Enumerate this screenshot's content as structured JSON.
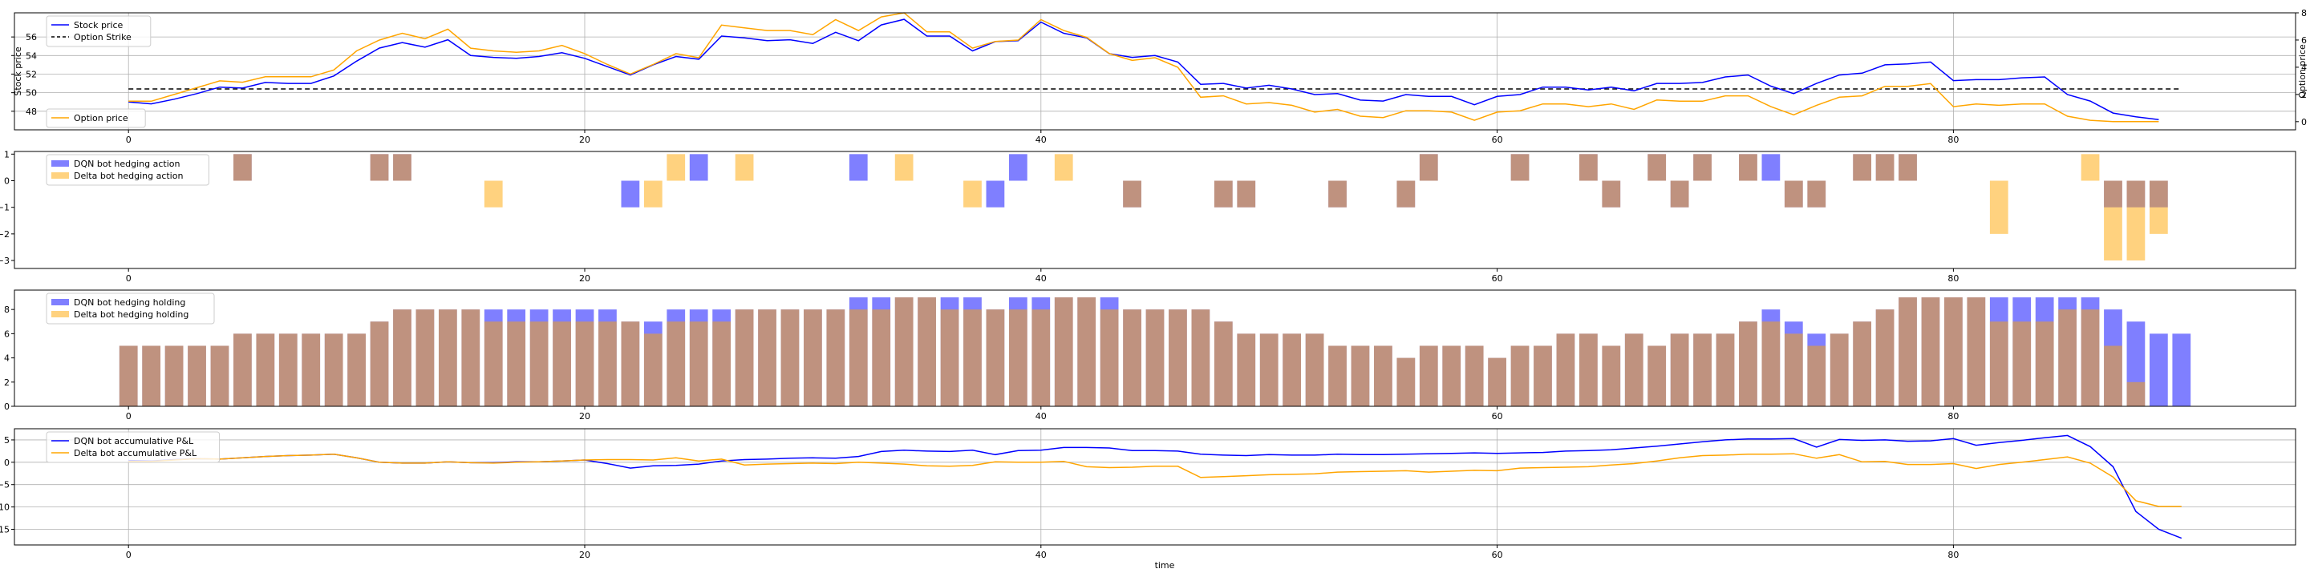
{
  "figure": {
    "xlabel": "time"
  },
  "chart_data": [
    {
      "type": "line",
      "xlim": [
        -5,
        95
      ],
      "ylim": [
        46,
        58.6
      ],
      "y2lim": [
        -0.6,
        8
      ],
      "xticks": [
        0,
        20,
        40,
        60,
        80
      ],
      "yticks": [
        48,
        50,
        52,
        54,
        56
      ],
      "y2ticks": [
        0,
        2,
        4,
        6,
        8
      ],
      "ylabel": "Stock price",
      "y2label": "Option price",
      "grid": true,
      "legend": "top-left",
      "legend2": "bottom-left",
      "strike": 50.4,
      "series": [
        {
          "name": "Stock price",
          "color": "#0000ff",
          "axis": "left",
          "values": [
            49.0,
            48.8,
            49.3,
            49.9,
            50.6,
            50.5,
            51.1,
            51.0,
            51.0,
            51.8,
            53.4,
            54.8,
            55.4,
            54.9,
            55.7,
            54.0,
            53.8,
            53.7,
            53.9,
            54.3,
            53.7,
            52.8,
            51.9,
            53.0,
            53.9,
            53.6,
            56.1,
            55.9,
            55.6,
            55.7,
            55.3,
            56.5,
            55.6,
            57.3,
            57.9,
            56.1,
            56.1,
            54.5,
            55.5,
            55.6,
            57.6,
            56.4,
            55.9,
            54.2,
            53.8,
            54.0,
            53.3,
            50.9,
            51.0,
            50.5,
            50.8,
            50.4,
            49.8,
            49.9,
            49.2,
            49.1,
            49.8,
            49.6,
            49.6,
            48.7,
            49.6,
            49.8,
            50.6,
            50.6,
            50.3,
            50.6,
            50.2,
            51.0,
            51.0,
            51.1,
            51.7,
            51.9,
            50.7,
            49.9,
            51.0,
            51.9,
            52.1,
            53.0,
            53.1,
            53.3,
            51.3,
            51.4,
            51.4,
            51.6,
            51.7,
            49.8,
            49.1,
            47.8,
            47.4,
            47.1
          ]
        },
        {
          "name": "Option price",
          "color": "#ffa500",
          "axis": "right",
          "values": [
            1.5,
            1.5,
            2.0,
            2.5,
            3.0,
            2.9,
            3.3,
            3.3,
            3.3,
            3.8,
            5.2,
            6.0,
            6.5,
            6.1,
            6.8,
            5.4,
            5.2,
            5.1,
            5.2,
            5.6,
            5.0,
            4.2,
            3.5,
            4.2,
            5.0,
            4.7,
            7.1,
            6.9,
            6.7,
            6.7,
            6.4,
            7.5,
            6.7,
            7.7,
            8.0,
            6.6,
            6.6,
            5.4,
            5.9,
            6.0,
            7.5,
            6.7,
            6.2,
            5.0,
            4.5,
            4.7,
            4.0,
            1.8,
            1.9,
            1.3,
            1.4,
            1.2,
            0.7,
            0.9,
            0.4,
            0.3,
            0.8,
            0.8,
            0.7,
            0.1,
            0.7,
            0.8,
            1.3,
            1.3,
            1.1,
            1.3,
            0.9,
            1.6,
            1.5,
            1.5,
            1.9,
            1.9,
            1.1,
            0.5,
            1.2,
            1.8,
            1.9,
            2.6,
            2.6,
            2.8,
            1.1,
            1.3,
            1.2,
            1.3,
            1.3,
            0.4,
            0.1,
            0.0,
            0.0,
            0.0
          ]
        }
      ]
    },
    {
      "type": "bar",
      "xlim": [
        -5,
        95
      ],
      "ylim": [
        -3.3,
        1.1
      ],
      "xticks": [
        0,
        20,
        40,
        60,
        80
      ],
      "yticks": [
        1,
        0,
        -1,
        -2,
        -3
      ],
      "grid": false,
      "legend": "top-left",
      "series": [
        {
          "name": "DQN bot hedging action",
          "color": "#0000ff",
          "values": [
            0,
            0,
            0,
            0,
            0,
            1,
            0,
            0,
            0,
            0,
            0,
            1,
            1,
            0,
            0,
            0,
            0,
            0,
            0,
            0,
            0,
            0,
            -1,
            0,
            0,
            1,
            0,
            0,
            0,
            0,
            0,
            0,
            1,
            0,
            0,
            0,
            0,
            0,
            -1,
            1,
            0,
            0,
            0,
            0,
            -1,
            0,
            0,
            0,
            -1,
            -1,
            0,
            0,
            0,
            -1,
            0,
            0,
            -1,
            1,
            0,
            0,
            0,
            1,
            0,
            0,
            1,
            -1,
            0,
            1,
            -1,
            1,
            0,
            1,
            1,
            -1,
            -1,
            0,
            1,
            1,
            1,
            0,
            0,
            0,
            0,
            0,
            0,
            0,
            0,
            -1,
            -1,
            -1
          ]
        },
        {
          "name": "Delta bot hedging action",
          "color": "#ffa500",
          "values": [
            0,
            0,
            0,
            0,
            0,
            1,
            0,
            0,
            0,
            0,
            0,
            1,
            1,
            0,
            0,
            0,
            -1,
            0,
            0,
            0,
            0,
            0,
            0,
            -1,
            1,
            0,
            0,
            1,
            0,
            0,
            0,
            0,
            0,
            0,
            1,
            0,
            0,
            -1,
            0,
            0,
            0,
            1,
            0,
            0,
            -1,
            0,
            0,
            0,
            -1,
            -1,
            0,
            0,
            0,
            -1,
            0,
            0,
            -1,
            1,
            0,
            0,
            0,
            1,
            0,
            0,
            1,
            -1,
            0,
            1,
            -1,
            1,
            0,
            1,
            0,
            -1,
            -1,
            0,
            1,
            1,
            1,
            0,
            0,
            0,
            -2,
            0,
            0,
            0,
            1,
            -3,
            -3,
            -2
          ]
        }
      ]
    },
    {
      "type": "bar",
      "xlim": [
        -5,
        95
      ],
      "ylim": [
        0,
        9.6
      ],
      "xticks": [
        0,
        20,
        40,
        60,
        80
      ],
      "yticks": [
        0,
        2,
        4,
        6,
        8
      ],
      "grid": false,
      "legend": "top-left",
      "series": [
        {
          "name": "DQN bot hedging holding",
          "color": "#0000ff",
          "values": [
            5,
            5,
            5,
            5,
            5,
            6,
            6,
            6,
            6,
            6,
            6,
            7,
            8,
            8,
            8,
            8,
            8,
            8,
            8,
            8,
            8,
            8,
            7,
            7,
            8,
            8,
            8,
            8,
            8,
            8,
            8,
            8,
            9,
            9,
            9,
            9,
            9,
            9,
            8,
            9,
            9,
            9,
            9,
            9,
            8,
            8,
            8,
            8,
            7,
            6,
            6,
            6,
            6,
            5,
            5,
            5,
            4,
            5,
            5,
            5,
            4,
            5,
            5,
            6,
            6,
            5,
            6,
            5,
            6,
            6,
            6,
            7,
            8,
            7,
            6,
            6,
            7,
            8,
            9,
            9,
            9,
            9,
            9,
            9,
            9,
            9,
            9,
            8,
            7,
            6,
            6
          ]
        },
        {
          "name": "Delta bot hedging holding",
          "color": "#ffa500",
          "values": [
            5,
            5,
            5,
            5,
            5,
            6,
            6,
            6,
            6,
            6,
            6,
            7,
            8,
            8,
            8,
            8,
            7,
            7,
            7,
            7,
            7,
            7,
            7,
            6,
            7,
            7,
            7,
            8,
            8,
            8,
            8,
            8,
            8,
            8,
            9,
            9,
            8,
            8,
            8,
            8,
            8,
            9,
            9,
            8,
            8,
            8,
            8,
            8,
            7,
            6,
            6,
            6,
            6,
            5,
            5,
            5,
            4,
            5,
            5,
            5,
            4,
            5,
            5,
            6,
            6,
            5,
            6,
            5,
            6,
            6,
            6,
            7,
            7,
            6,
            5,
            6,
            7,
            8,
            9,
            9,
            9,
            9,
            7,
            7,
            7,
            8,
            8,
            5,
            2,
            0,
            0
          ]
        }
      ]
    },
    {
      "type": "line",
      "xlim": [
        -5,
        95
      ],
      "ylim": [
        -18.5,
        7.5
      ],
      "xticks": [
        0,
        20,
        40,
        60,
        80
      ],
      "yticks": [
        5,
        0,
        -5,
        -10,
        -15
      ],
      "xlabel": "time",
      "grid": true,
      "legend": "top-left",
      "series": [
        {
          "name": "DQN bot accumulative P&L",
          "color": "#0000ff",
          "values": [
            0.4,
            0.3,
            0.6,
            0.8,
            0.7,
            1.0,
            1.3,
            1.5,
            1.6,
            1.8,
            1.0,
            0.0,
            -0.2,
            -0.2,
            0.1,
            -0.1,
            -0.1,
            0.1,
            0.1,
            0.3,
            0.5,
            -0.3,
            -1.3,
            -0.8,
            -0.7,
            -0.4,
            0.3,
            0.6,
            0.7,
            0.9,
            1.0,
            0.9,
            1.3,
            2.4,
            2.7,
            2.5,
            2.4,
            2.7,
            1.7,
            2.6,
            2.7,
            3.3,
            3.3,
            3.2,
            2.6,
            2.6,
            2.5,
            1.8,
            1.6,
            1.5,
            1.7,
            1.6,
            1.6,
            1.8,
            1.7,
            1.7,
            1.8,
            1.9,
            2.0,
            2.1,
            2.0,
            2.1,
            2.2,
            2.5,
            2.6,
            2.8,
            3.2,
            3.6,
            4.1,
            4.6,
            5.0,
            5.2,
            5.2,
            5.3,
            3.4,
            5.1,
            4.9,
            5.0,
            4.7,
            4.8,
            5.3,
            3.8,
            4.4,
            4.9,
            5.5,
            6.0,
            3.5,
            -1.0,
            -11.0,
            -15.0,
            -17.0
          ]
        },
        {
          "name": "Delta bot accumulative P&L",
          "color": "#ffa500",
          "values": [
            0.2,
            0.2,
            0.5,
            0.8,
            0.7,
            1.0,
            1.3,
            1.5,
            1.6,
            1.8,
            1.0,
            0.0,
            -0.2,
            -0.2,
            0.1,
            -0.1,
            -0.2,
            0.0,
            0.1,
            0.3,
            0.5,
            0.6,
            0.6,
            0.5,
            1.0,
            0.3,
            0.7,
            -0.6,
            -0.4,
            -0.3,
            -0.2,
            -0.3,
            0.0,
            -0.2,
            -0.4,
            -0.8,
            -0.9,
            -0.7,
            0.1,
            0.0,
            0.0,
            0.2,
            -1.0,
            -1.2,
            -1.1,
            -0.9,
            -0.9,
            -3.4,
            -3.2,
            -3.0,
            -2.8,
            -2.7,
            -2.6,
            -2.2,
            -2.1,
            -2.0,
            -1.9,
            -2.2,
            -2.0,
            -1.8,
            -1.9,
            -1.3,
            -1.2,
            -1.1,
            -1.0,
            -0.6,
            -0.3,
            0.3,
            1.0,
            1.5,
            1.6,
            1.8,
            1.8,
            1.9,
            0.9,
            1.7,
            0.1,
            0.2,
            -0.5,
            -0.5,
            -0.3,
            -1.4,
            -0.5,
            0.0,
            0.6,
            1.2,
            -0.2,
            -3.3,
            -8.6,
            -9.9,
            -9.9
          ]
        }
      ]
    }
  ]
}
